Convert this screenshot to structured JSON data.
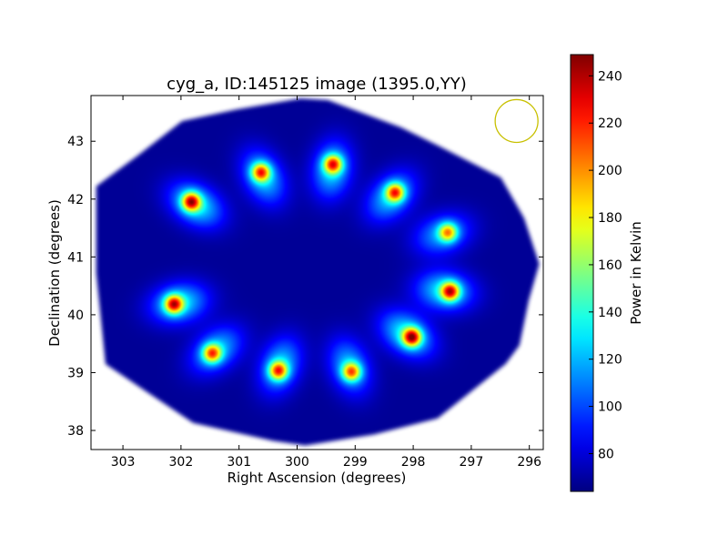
{
  "chart_data": {
    "type": "heatmap",
    "title": "cyg_a, ID:145125 image (1395.0,YY)",
    "xlabel": "Right Ascension (degrees)",
    "ylabel": "Declination (degrees)",
    "xlim": [
      303.55,
      295.76
    ],
    "ylim": [
      37.67,
      43.79
    ],
    "xticks": [
      303,
      302,
      301,
      300,
      299,
      298,
      297,
      296
    ],
    "yticks": [
      38,
      39,
      40,
      41,
      42,
      43
    ],
    "colorbar": {
      "label": "Power in Kelvin",
      "colormap": "jet",
      "range": [
        64,
        249
      ],
      "ticks": [
        80,
        100,
        120,
        140,
        160,
        180,
        200,
        220,
        240
      ]
    },
    "background_level": 68,
    "field_boundary": [
      [
        303.46,
        42.22
      ],
      [
        302.72,
        42.77
      ],
      [
        301.98,
        43.35
      ],
      [
        301.04,
        43.55
      ],
      [
        299.94,
        43.74
      ],
      [
        299.47,
        43.71
      ],
      [
        298.21,
        43.24
      ],
      [
        297.58,
        42.93
      ],
      [
        296.49,
        42.37
      ],
      [
        296.09,
        41.67
      ],
      [
        295.83,
        40.88
      ],
      [
        296.01,
        40.25
      ],
      [
        296.17,
        39.47
      ],
      [
        296.41,
        39.15
      ],
      [
        297.58,
        38.21
      ],
      [
        298.68,
        37.93
      ],
      [
        299.86,
        37.74
      ],
      [
        300.41,
        37.82
      ],
      [
        301.79,
        38.13
      ],
      [
        302.61,
        38.68
      ],
      [
        303.3,
        39.15
      ],
      [
        303.46,
        40.72
      ]
    ],
    "sources": [
      {
        "ra": 301.83,
        "dec": 41.96,
        "peak": 235
      },
      {
        "ra": 300.63,
        "dec": 42.47,
        "peak": 215
      },
      {
        "ra": 299.39,
        "dec": 42.61,
        "peak": 220
      },
      {
        "ra": 298.32,
        "dec": 42.12,
        "peak": 215
      },
      {
        "ra": 297.41,
        "dec": 41.43,
        "peak": 195
      },
      {
        "ra": 297.37,
        "dec": 40.41,
        "peak": 230
      },
      {
        "ra": 298.03,
        "dec": 39.62,
        "peak": 240
      },
      {
        "ra": 299.07,
        "dec": 39.02,
        "peak": 205
      },
      {
        "ra": 300.33,
        "dec": 39.04,
        "peak": 215
      },
      {
        "ra": 301.47,
        "dec": 39.34,
        "peak": 210
      },
      {
        "ra": 302.13,
        "dec": 40.19,
        "peak": 230
      }
    ],
    "beam": {
      "ra": 296.22,
      "dec": 43.35,
      "radius_deg": 0.37,
      "color": "#c8c000"
    }
  }
}
